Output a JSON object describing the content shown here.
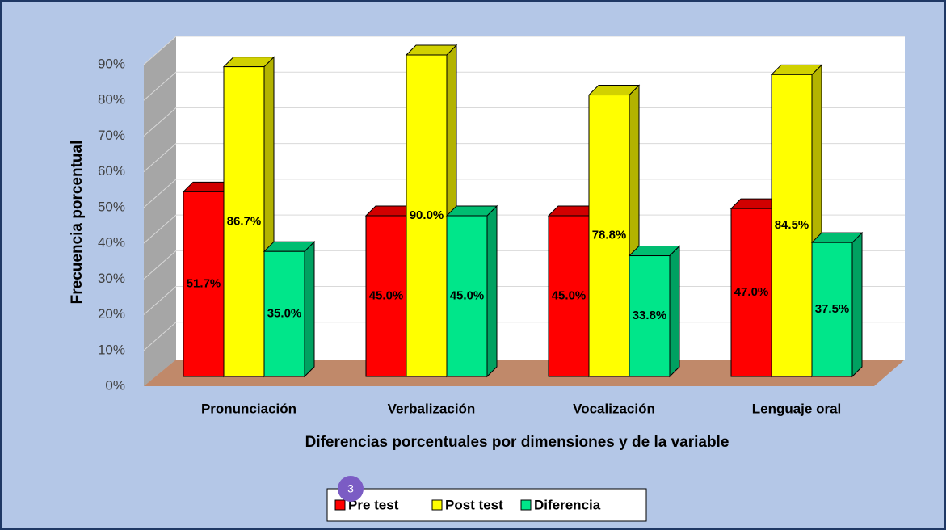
{
  "chart_data": {
    "type": "bar",
    "xlabel": "Diferencias porcentuales por dimensiones y de la variable",
    "ylabel": "Frecuencia porcentual",
    "categories": [
      "Pronunciación",
      "Verbalización",
      "Vocalización",
      "Lenguaje oral"
    ],
    "series": [
      {
        "name": "Pre test",
        "color": "#ff0000",
        "values": [
          51.7,
          45.0,
          45.0,
          47.0
        ],
        "value_labels": [
          "51.7%",
          "45.0%",
          "45.0%",
          "47.0%"
        ]
      },
      {
        "name": "Post test",
        "color": "#ffff00",
        "values": [
          86.7,
          90.0,
          78.8,
          84.5
        ],
        "value_labels": [
          "86.7%",
          "90.0%",
          "78.8%",
          "84.5%"
        ]
      },
      {
        "name": "Diferencia",
        "color": "#00e68a",
        "values": [
          35.0,
          45.0,
          33.8,
          37.5
        ],
        "value_labels": [
          "35.0%",
          "45.0%",
          "33.8%",
          "37.5%"
        ]
      }
    ],
    "ylim": [
      0,
      90
    ],
    "yticks": [
      {
        "value": 0,
        "label": "0%"
      },
      {
        "value": 10,
        "label": "10%"
      },
      {
        "value": 20,
        "label": "20%"
      },
      {
        "value": 30,
        "label": "30%"
      },
      {
        "value": 40,
        "label": "40%"
      },
      {
        "value": 50,
        "label": "50%"
      },
      {
        "value": 60,
        "label": "60%"
      },
      {
        "value": 70,
        "label": "70%"
      },
      {
        "value": 80,
        "label": "80%"
      },
      {
        "value": 90,
        "label": "90%"
      }
    ],
    "grid": true,
    "legend": "bottom",
    "badge": "3"
  }
}
